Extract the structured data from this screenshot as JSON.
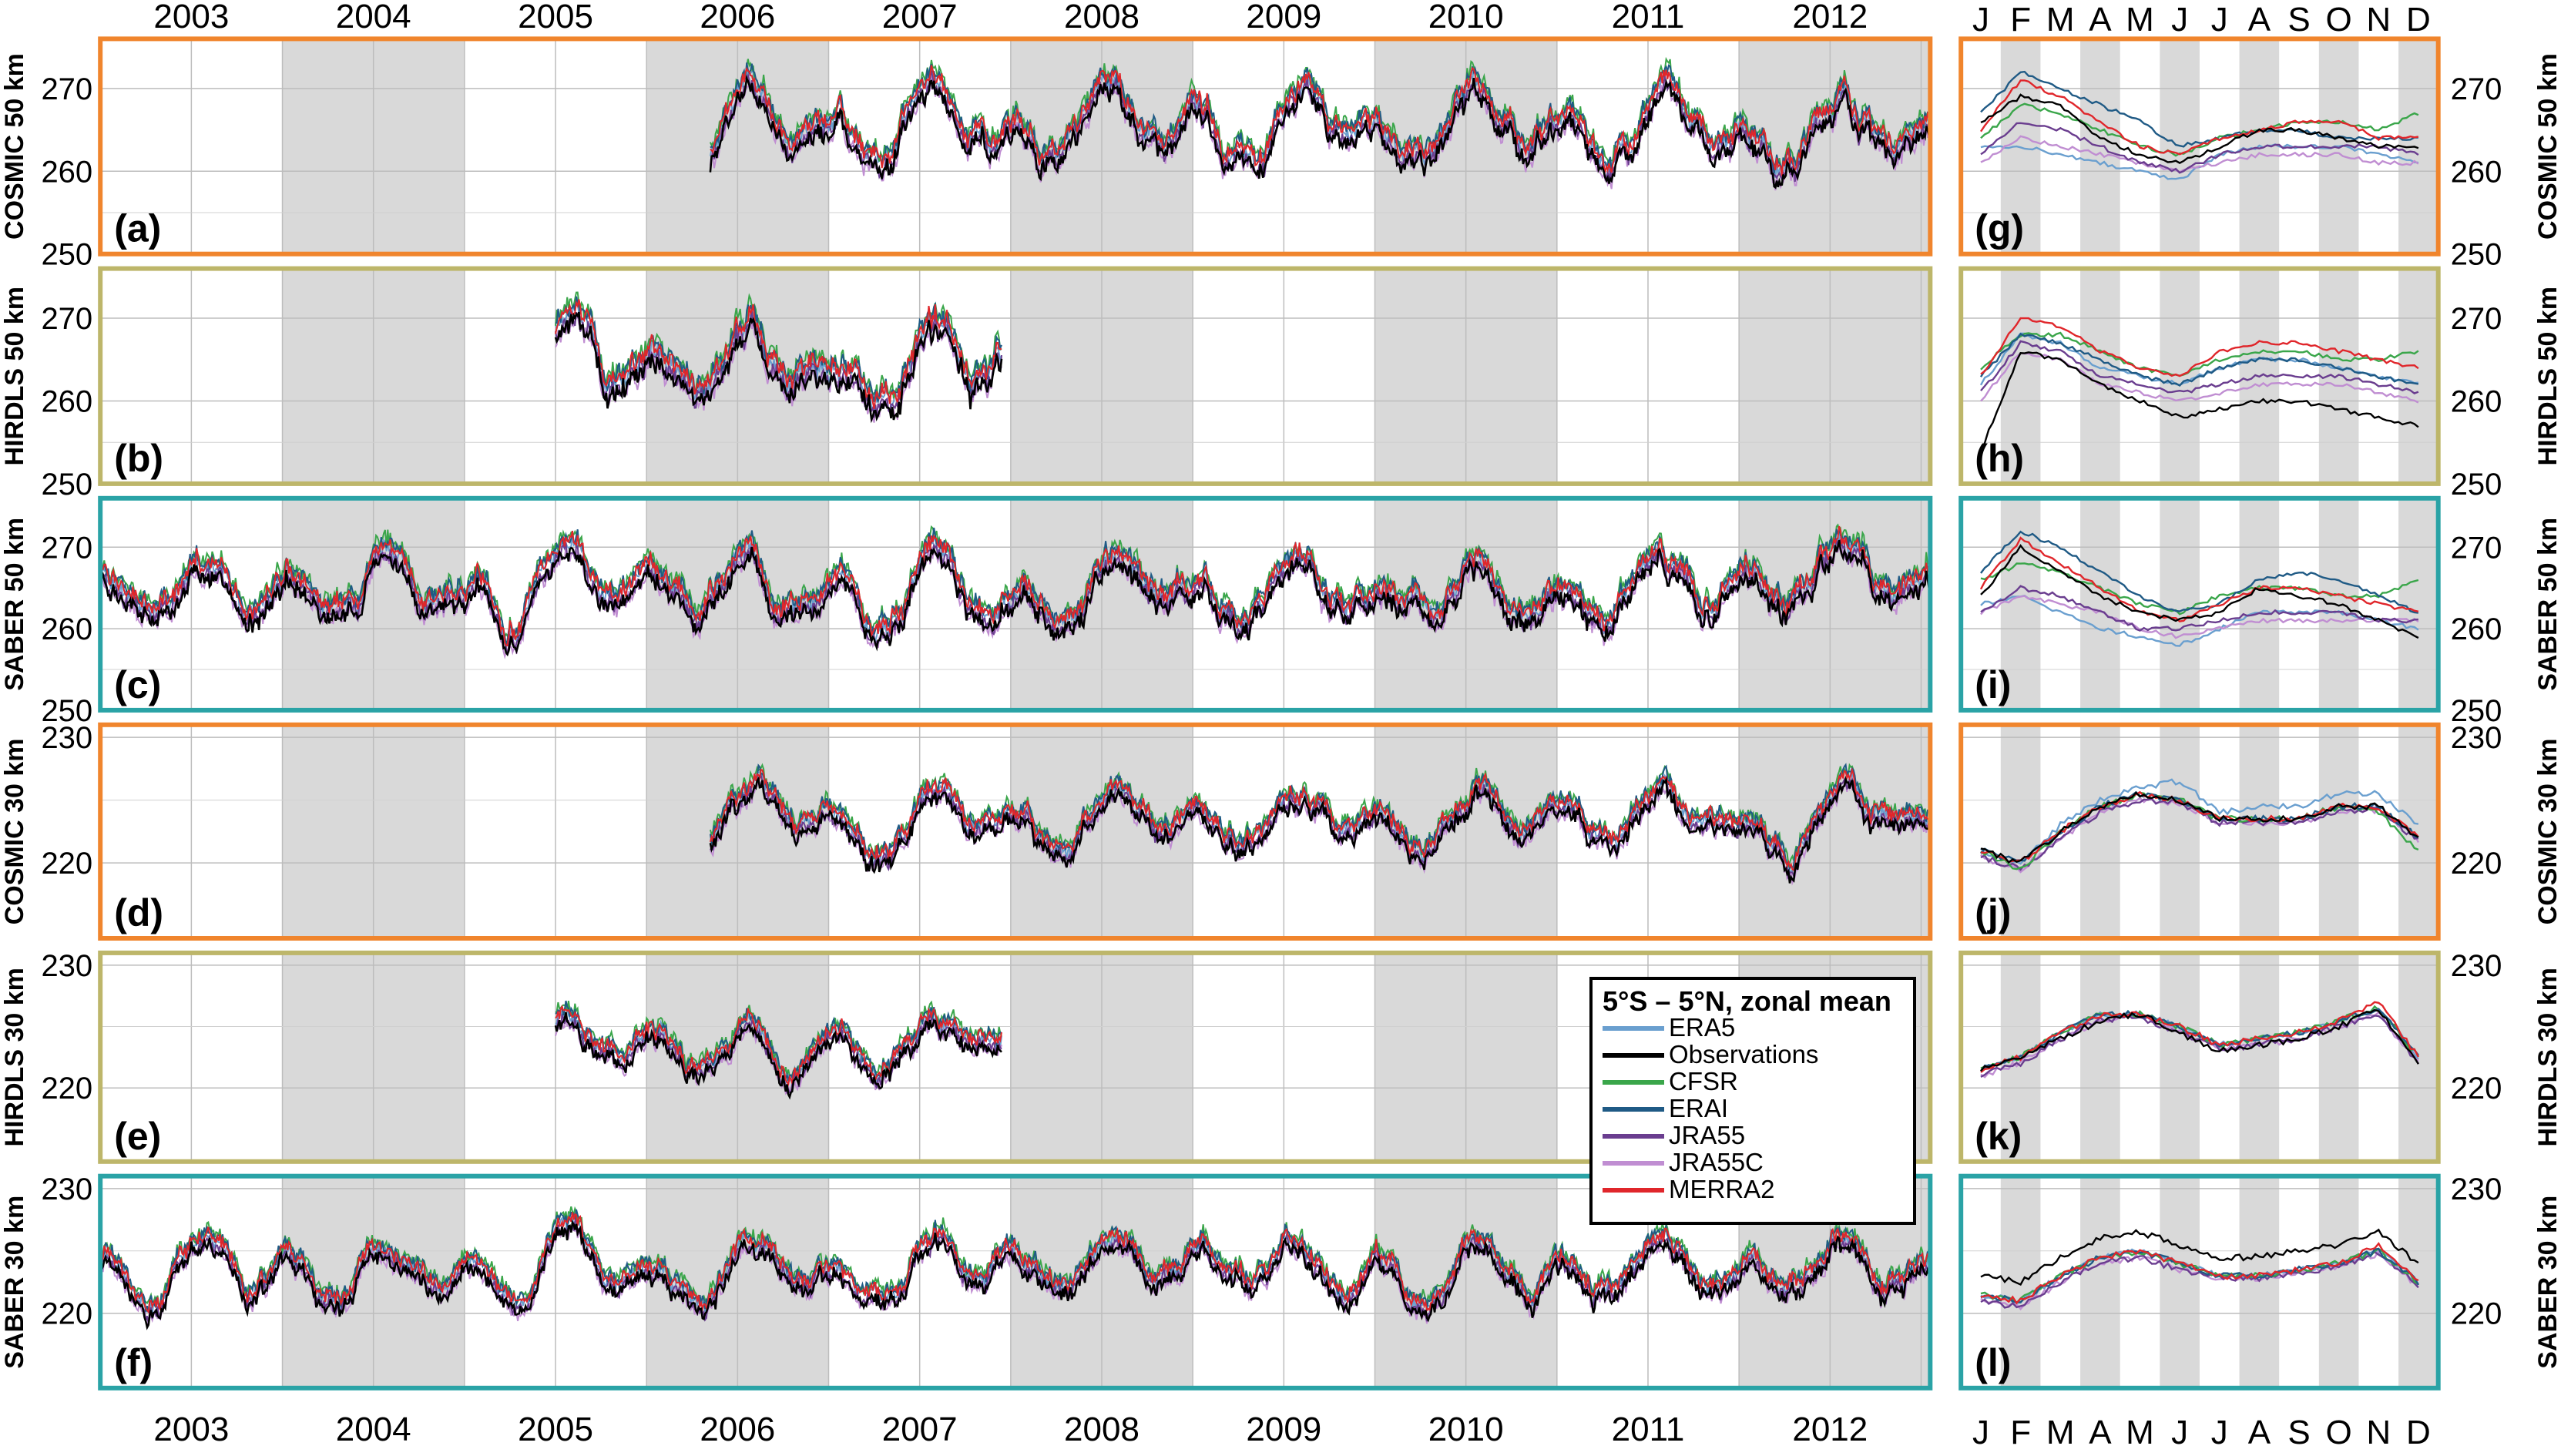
{
  "figure": {
    "years": [
      "2003",
      "2004",
      "2005",
      "2006",
      "2007",
      "2008",
      "2009",
      "2010",
      "2011",
      "2012"
    ],
    "months": [
      "J",
      "F",
      "M",
      "A",
      "M",
      "J",
      "J",
      "A",
      "S",
      "O",
      "N",
      "D"
    ],
    "frame_colors": {
      "COSMIC": "#f0852d",
      "HIRDLS": "#bdb66a",
      "SABER": "#2aa3a6"
    },
    "shade_color": "#d9d9d9"
  },
  "legend": {
    "title": "5°S – 5°N, zonal mean",
    "items": [
      {
        "name": "ERA5",
        "color": "#6a9fcf"
      },
      {
        "name": "Observations",
        "color": "#000000"
      },
      {
        "name": "CFSR",
        "color": "#3aa64a"
      },
      {
        "name": "ERAI",
        "color": "#1f5a85"
      },
      {
        "name": "JRA55",
        "color": "#6a3d8f"
      },
      {
        "name": "JRA55C",
        "color": "#c08ed2"
      },
      {
        "name": "MERRA2",
        "color": "#e0262b"
      }
    ]
  },
  "chart_data": [
    {
      "type": "line",
      "panel": "(a)",
      "instrument": "COSMIC",
      "ylabel": "COSMIC 50 km",
      "yticks": [
        250,
        260,
        270
      ],
      "ylim": [
        250,
        276
      ],
      "xlim": [
        2002.5,
        2012.55
      ],
      "coverage": [
        2005.85,
        2012.55
      ],
      "base": 265,
      "amp": 4.5
    },
    {
      "type": "line",
      "panel": "(b)",
      "instrument": "HIRDLS",
      "ylabel": "HIRDLS 50 km",
      "yticks": [
        250,
        260,
        270
      ],
      "ylim": [
        250,
        276
      ],
      "xlim": [
        2002.5,
        2012.55
      ],
      "coverage": [
        2005.0,
        2007.45
      ],
      "base": 264,
      "amp": 5
    },
    {
      "type": "line",
      "panel": "(c)",
      "instrument": "SABER",
      "ylabel": "SABER 50 km",
      "yticks": [
        250,
        260,
        270
      ],
      "ylim": [
        250,
        276
      ],
      "xlim": [
        2002.5,
        2012.55
      ],
      "coverage": [
        2002.5,
        2012.55
      ],
      "base": 265,
      "amp": 4.5
    },
    {
      "type": "line",
      "panel": "(d)",
      "instrument": "COSMIC",
      "ylabel": "COSMIC 30 km",
      "yticks": [
        220,
        230
      ],
      "ylim": [
        214,
        231
      ],
      "xlim": [
        2002.5,
        2012.55
      ],
      "coverage": [
        2005.85,
        2012.55
      ],
      "base": 223.5,
      "amp": 2.5
    },
    {
      "type": "line",
      "panel": "(e)",
      "instrument": "HIRDLS",
      "ylabel": "HIRDLS 30 km",
      "yticks": [
        220,
        230
      ],
      "ylim": [
        214,
        231
      ],
      "xlim": [
        2002.5,
        2012.55
      ],
      "coverage": [
        2005.0,
        2007.45
      ],
      "base": 223.5,
      "amp": 2.5
    },
    {
      "type": "line",
      "panel": "(f)",
      "instrument": "SABER",
      "ylabel": "SABER 30 km",
      "yticks": [
        220,
        230
      ],
      "ylim": [
        214,
        231
      ],
      "xlim": [
        2002.5,
        2012.55
      ],
      "coverage": [
        2002.5,
        2012.55
      ],
      "base": 223.5,
      "amp": 2.5
    },
    {
      "type": "line",
      "panel": "(g)",
      "instrument": "COSMIC",
      "ylabel": "COSMIC 50 km",
      "yticks": [
        250,
        260,
        270
      ],
      "ylim": [
        250,
        276
      ],
      "x_unit": "month",
      "climatology": {
        "Observations": [
          266,
          269,
          268,
          264,
          262,
          261,
          263,
          265,
          265,
          264,
          263,
          263
        ],
        "ERA5": [
          263,
          263,
          262,
          261,
          260,
          259,
          262,
          263,
          263,
          263,
          262,
          261
        ],
        "CFSR": [
          264,
          268,
          267,
          265,
          263,
          262,
          264,
          265,
          266,
          266,
          265,
          267
        ],
        "ERAI": [
          267,
          272,
          270,
          268,
          266,
          263,
          264,
          265,
          265,
          264,
          264,
          264
        ],
        "JRA55": [
          262,
          266,
          265,
          263,
          261,
          260,
          262,
          263,
          263,
          263,
          263,
          262
        ],
        "JRA55C": [
          261,
          264,
          263,
          262,
          261,
          260,
          261,
          262,
          262,
          262,
          261,
          261
        ],
        "MERRA2": [
          265,
          271,
          269,
          266,
          263,
          262,
          264,
          265,
          266,
          266,
          264,
          264
        ]
      }
    },
    {
      "type": "line",
      "panel": "(h)",
      "instrument": "HIRDLS",
      "ylabel": "HIRDLS 50 km",
      "yticks": [
        250,
        260,
        270
      ],
      "ylim": [
        250,
        276
      ],
      "x_unit": "month",
      "climatology": {
        "Observations": [
          254,
          266,
          265,
          262,
          260,
          258,
          259,
          260,
          260,
          259,
          258,
          257
        ],
        "ERA5": [
          262,
          268,
          267,
          264,
          263,
          262,
          264,
          265,
          265,
          264,
          263,
          262
        ],
        "CFSR": [
          264,
          268,
          268,
          266,
          264,
          263,
          265,
          266,
          266,
          265,
          265,
          266
        ],
        "ERAI": [
          263,
          268,
          267,
          265,
          263,
          262,
          264,
          265,
          265,
          264,
          263,
          262
        ],
        "JRA55": [
          261,
          267,
          266,
          263,
          262,
          261,
          262,
          263,
          263,
          263,
          262,
          261
        ],
        "JRA55C": [
          260,
          266,
          265,
          262,
          261,
          260,
          261,
          262,
          262,
          262,
          261,
          260
        ],
        "MERRA2": [
          263,
          270,
          269,
          266,
          264,
          263,
          266,
          267,
          267,
          266,
          265,
          264
        ]
      }
    },
    {
      "type": "line",
      "panel": "(i)",
      "instrument": "SABER",
      "ylabel": "SABER 50 km",
      "yticks": [
        250,
        260,
        270
      ],
      "ylim": [
        250,
        276
      ],
      "x_unit": "month",
      "climatology": {
        "Observations": [
          264,
          270,
          267,
          264,
          262,
          261,
          262,
          265,
          264,
          263,
          261,
          259
        ],
        "ERA5": [
          263,
          264,
          262,
          260,
          259,
          258,
          260,
          262,
          262,
          262,
          261,
          260
        ],
        "CFSR": [
          266,
          268,
          267,
          265,
          263,
          262,
          264,
          265,
          265,
          264,
          264,
          266
        ],
        "ERAI": [
          267,
          272,
          270,
          267,
          264,
          262,
          263,
          266,
          267,
          266,
          264,
          262
        ],
        "JRA55": [
          262,
          265,
          264,
          262,
          260,
          260,
          261,
          262,
          262,
          262,
          261,
          261
        ],
        "JRA55C": [
          262,
          264,
          263,
          262,
          260,
          259,
          260,
          261,
          261,
          261,
          261,
          261
        ],
        "MERRA2": [
          265,
          271,
          268,
          265,
          262,
          261,
          263,
          265,
          265,
          264,
          263,
          262
        ]
      }
    },
    {
      "type": "line",
      "panel": "(j)",
      "instrument": "COSMIC",
      "ylabel": "COSMIC 30 km",
      "yticks": [
        220,
        230
      ],
      "ylim": [
        214,
        231
      ],
      "x_unit": "month",
      "climatology": {
        "Observations": [
          221,
          220,
          222.5,
          224.5,
          225.5,
          225,
          223.5,
          223.5,
          223.5,
          224.5,
          224.5,
          222
        ],
        "ERA5": [
          221,
          220,
          223,
          225,
          226,
          226.5,
          224,
          224.5,
          224.5,
          225.5,
          225.5,
          223
        ],
        "CFSR": [
          221,
          219.5,
          222.5,
          224.5,
          225.5,
          225,
          223.5,
          223.5,
          223.5,
          224.5,
          224,
          221
        ],
        "ERAI": [
          221,
          220,
          222.5,
          224.5,
          225.5,
          225,
          223.5,
          223.5,
          223.5,
          224.5,
          224.5,
          222
        ],
        "JRA55": [
          220.5,
          219.5,
          222,
          224,
          225,
          224.8,
          223.2,
          223.2,
          223.2,
          224.2,
          224.2,
          221.8
        ],
        "JRA55C": [
          220.5,
          219.5,
          222,
          224,
          225,
          224.8,
          223.2,
          223.2,
          223.2,
          224.2,
          224.2,
          221.8
        ],
        "MERRA2": [
          221,
          220,
          222.5,
          224.5,
          225.5,
          225,
          223.5,
          223.5,
          223.5,
          224.5,
          224.5,
          222
        ]
      }
    },
    {
      "type": "line",
      "panel": "(k)",
      "instrument": "HIRDLS",
      "ylabel": "HIRDLS 30 km",
      "yticks": [
        220,
        230
      ],
      "ylim": [
        214,
        231
      ],
      "x_unit": "month",
      "climatology": {
        "Observations": [
          221.5,
          222.5,
          224,
          225.5,
          226,
          224.5,
          223,
          223.5,
          224,
          225,
          226.5,
          222
        ],
        "ERA5": [
          221.5,
          222.5,
          224.5,
          226,
          226,
          225,
          223.5,
          224,
          224.5,
          225.5,
          226.5,
          222.5
        ],
        "CFSR": [
          221.5,
          222.5,
          224.5,
          226,
          226,
          225,
          223.5,
          224,
          224.5,
          225.5,
          226.5,
          222.5
        ],
        "ERAI": [
          221.5,
          222.5,
          224.5,
          226,
          226,
          225,
          223.5,
          224,
          224.5,
          225.5,
          226.5,
          222.5
        ],
        "JRA55": [
          221,
          222,
          224,
          225.5,
          225.8,
          224.5,
          223.2,
          223.5,
          224,
          225,
          226,
          222
        ],
        "JRA55C": [
          221,
          222,
          224,
          225.5,
          225.8,
          224.5,
          223.2,
          223.5,
          224,
          225,
          226,
          222
        ],
        "MERRA2": [
          221.5,
          222.5,
          224.5,
          226,
          226,
          225,
          223.5,
          224,
          224.5,
          225.5,
          227,
          222.5
        ]
      }
    },
    {
      "type": "line",
      "panel": "(l)",
      "instrument": "SABER",
      "ylabel": "SABER 30 km",
      "yticks": [
        220,
        230
      ],
      "ylim": [
        214,
        231
      ],
      "x_unit": "month",
      "climatology": {
        "Observations": [
          223,
          222.5,
          224.5,
          226,
          226.5,
          225.5,
          224.5,
          224.5,
          225,
          225.5,
          226.5,
          224
        ],
        "ERA5": [
          221.5,
          221,
          223,
          224.5,
          225,
          224,
          223,
          223,
          223.5,
          224,
          225,
          222.5
        ],
        "CFSR": [
          221.5,
          221,
          223,
          224.5,
          225,
          224,
          223,
          223,
          223.5,
          224,
          225,
          222.5
        ],
        "ERAI": [
          221.5,
          221,
          223,
          224.5,
          225,
          224,
          223,
          223,
          223.5,
          224,
          225,
          222.5
        ],
        "JRA55": [
          221,
          220.5,
          222.5,
          224,
          224.5,
          223.5,
          222.8,
          222.8,
          223.2,
          223.8,
          224.8,
          222.2
        ],
        "JRA55C": [
          221,
          220.5,
          222.5,
          224,
          224.5,
          223.5,
          222.8,
          222.8,
          223.2,
          223.8,
          224.8,
          222.2
        ],
        "MERRA2": [
          221.5,
          221,
          223,
          224.5,
          225,
          224,
          223,
          223,
          223.5,
          224,
          225.5,
          222.5
        ]
      }
    }
  ]
}
